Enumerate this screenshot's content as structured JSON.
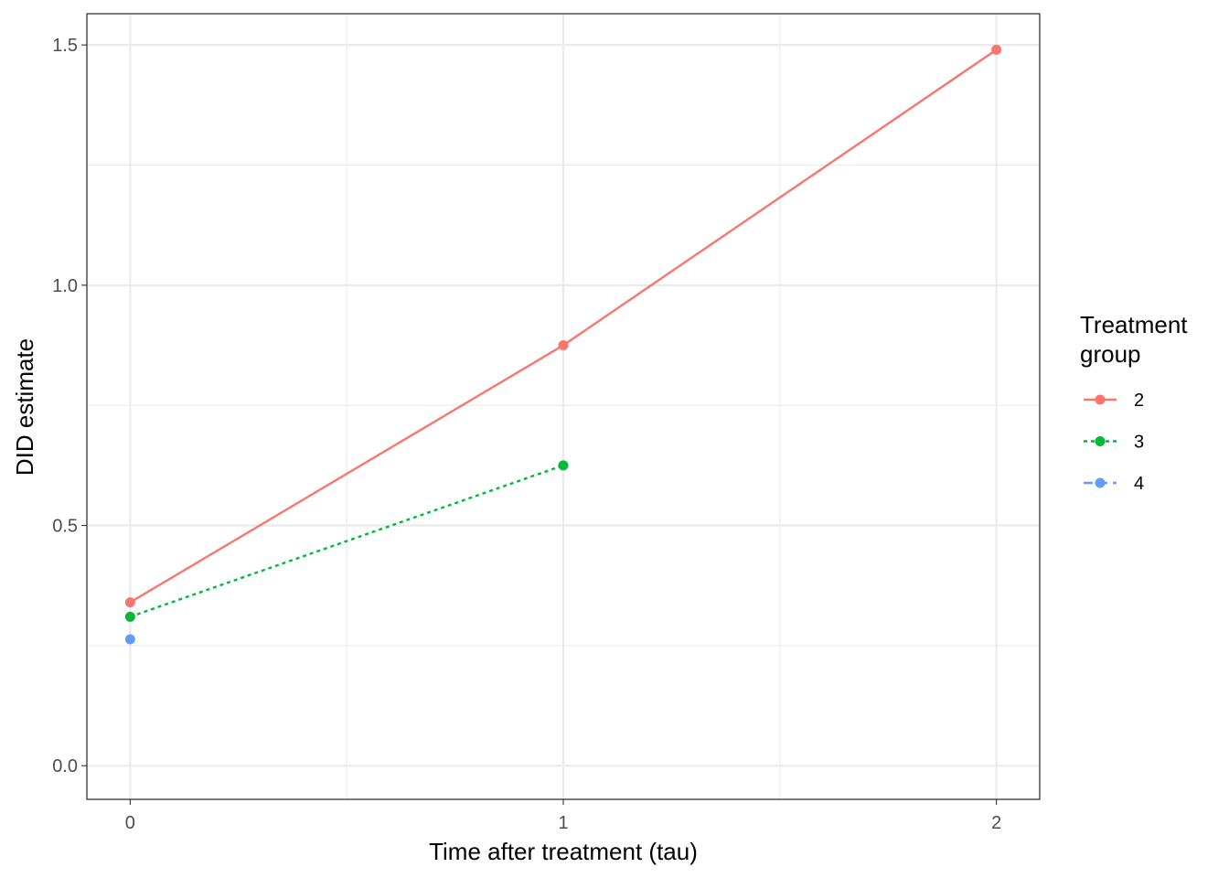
{
  "chart_data": {
    "type": "line",
    "xlabel": "Time after treatment (tau)",
    "ylabel": "DID estimate",
    "xlim": [
      -0.1,
      2.1
    ],
    "ylim": [
      -0.07,
      1.565
    ],
    "x_ticks": [
      0,
      1,
      2
    ],
    "x_tick_labels": [
      "0",
      "1",
      "2"
    ],
    "y_ticks": [
      0,
      0.5,
      1,
      1.5
    ],
    "y_tick_labels": [
      "0.0",
      "0.5",
      "1.0",
      "1.5"
    ],
    "grid": true,
    "legend": {
      "title_lines": [
        "Treatment",
        "group"
      ],
      "placement": "right"
    },
    "series": [
      {
        "name": "2",
        "color": "#F8766D",
        "linetype": "solid",
        "x": [
          0,
          1,
          2
        ],
        "y": [
          0.34,
          0.875,
          1.49
        ]
      },
      {
        "name": "3",
        "color": "#00BA38",
        "linetype": "dotted",
        "x": [
          0,
          1
        ],
        "y": [
          0.31,
          0.625
        ]
      },
      {
        "name": "4",
        "color": "#619CFF",
        "linetype": "dashed",
        "x": [
          0
        ],
        "y": [
          0.263
        ]
      }
    ]
  }
}
